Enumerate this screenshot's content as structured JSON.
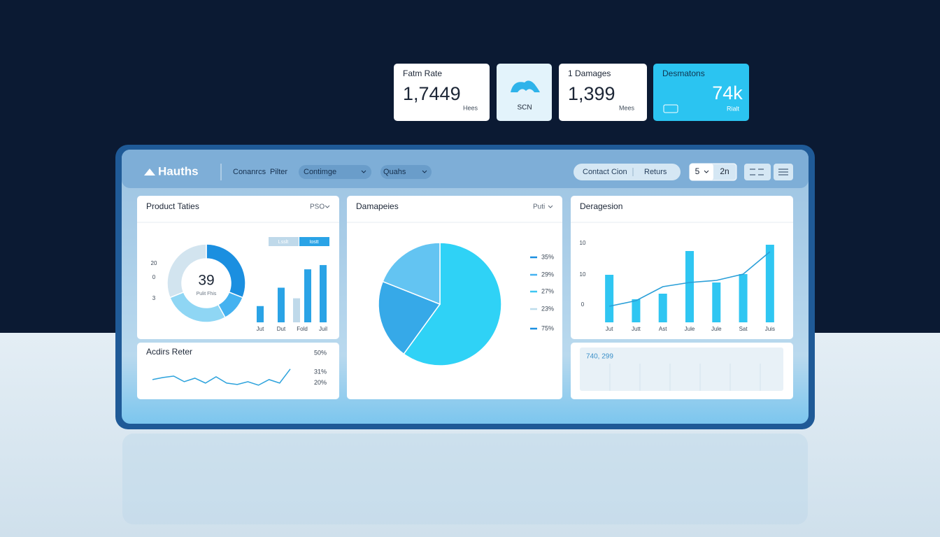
{
  "stat_cards": [
    {
      "label": "Fatm Rate",
      "value": "1,7449",
      "unit": "Hees"
    },
    {
      "label": "SCN"
    },
    {
      "label": "1 Damages",
      "value": "1,399",
      "unit": "Mees"
    },
    {
      "label": "Desmatons",
      "value": "74k",
      "unit": "Rialt"
    }
  ],
  "toolbar": {
    "brand": "Hauths",
    "links": [
      "Conanrcs",
      "Pilter"
    ],
    "dropdowns": [
      "Contimge",
      "Quahs"
    ],
    "actions": [
      "Contact Cion",
      "Returs"
    ],
    "pager": [
      "5",
      "2n"
    ]
  },
  "footer_panel": {
    "text": "740, 299"
  },
  "chart_data": [
    {
      "type": "donut",
      "title": "Product Taties",
      "filter": "PSO",
      "center_value": "39",
      "center_label": "Pulit Fhis",
      "values": [
        31,
        11,
        27,
        31
      ],
      "colors": [
        "#1b8fe0",
        "#45b2f0",
        "#8fd6f4",
        "#d2e4ef"
      ]
    },
    {
      "type": "bar",
      "categories": [
        "Jut",
        "Dut",
        "Fold",
        "Juil"
      ],
      "axis_labels": [
        "20",
        "0",
        "3"
      ],
      "ylim": [
        0,
        90
      ],
      "series": [
        {
          "name": "Lsslt",
          "color": "#bfd9ea",
          "values": [
            null,
            null,
            34,
            null
          ]
        },
        {
          "name": "Iostt",
          "color": "#2aa3e6",
          "values": [
            23,
            49,
            75,
            81
          ]
        }
      ]
    },
    {
      "type": "pie",
      "title": "Damapeies",
      "filter": "Puti",
      "values": [
        60,
        21,
        19
      ],
      "colors": [
        "#2fd2f6",
        "#36a9e8",
        "#63c4f2"
      ],
      "legend_labels": [
        "35%",
        "29%",
        "27%",
        "23%",
        "75%"
      ],
      "legend_colors": [
        "#1b8fe0",
        "#45b2f0",
        "#3fc6f2",
        "#bcdcec",
        "#1b8fe0"
      ]
    },
    {
      "type": "combo",
      "title": "Deragesion",
      "categories": [
        "Jut",
        "Jutt",
        "Ast",
        "Jule",
        "Jule",
        "Sat",
        "Juis"
      ],
      "axis_labels": [
        "10",
        "10",
        "0"
      ],
      "ylim": [
        0,
        120
      ],
      "series": [
        {
          "type": "bar",
          "color": "#2fc6f2",
          "values": [
            68,
            33,
            41,
            102,
            57,
            69,
            111
          ]
        },
        {
          "type": "line",
          "color": "#2a9fd8",
          "values": [
            23,
            31,
            51,
            57,
            60,
            69,
            101
          ]
        }
      ]
    },
    {
      "type": "line",
      "title": "Acdirs Reter",
      "color": "#2ca2dc",
      "ylim": [
        15,
        50
      ],
      "yticks": [
        {
          "value": 50,
          "label": "50%"
        },
        {
          "value": 31,
          "label": "31%"
        },
        {
          "value": 20,
          "label": "20%"
        }
      ],
      "values": [
        23.5,
        25.6,
        27,
        21.4,
        24.9,
        20,
        26.3,
        20,
        18.6,
        21.4,
        17.9,
        23.5,
        20,
        34
      ]
    }
  ]
}
